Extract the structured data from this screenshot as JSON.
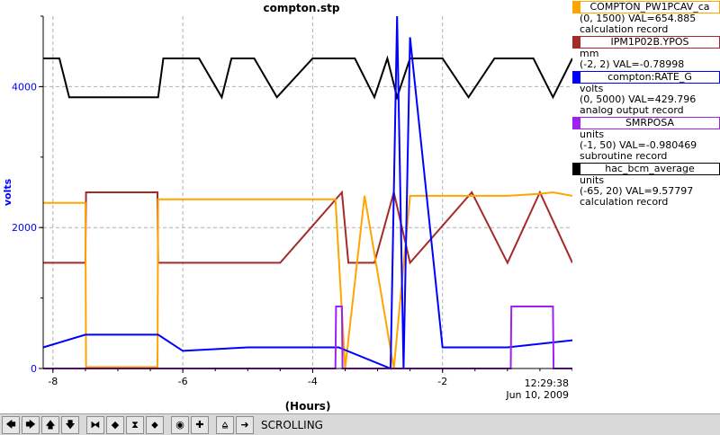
{
  "chart_data": {
    "type": "line",
    "title": "compton.stp",
    "xlabel": "(Hours)",
    "ylabel": "volts",
    "xlim": [
      -8.15,
      0.0
    ],
    "ylim": [
      0,
      5000
    ],
    "xticks": [
      "-8",
      "-6",
      "-4",
      "-2"
    ],
    "xtick_values": [
      -8,
      -6,
      -4,
      -2
    ],
    "yticks": [
      "0",
      "2000",
      "4000"
    ],
    "ytick_values": [
      0,
      2000,
      4000
    ],
    "time_label": "12:29:38",
    "date_label": "Jun 10, 2009",
    "grid": true,
    "legend_position": "right",
    "series": [
      {
        "name": "hac_bcm_average",
        "color": "#000000",
        "range": [
          -65,
          20
        ],
        "x": [
          -8.15,
          -7.9,
          -7.75,
          -7.5,
          -6.38,
          -6.3,
          -6.0,
          -5.75,
          -5.4,
          -5.25,
          -4.9,
          -4.55,
          -4.0,
          -3.75,
          -3.35,
          -3.05,
          -2.85,
          -2.7,
          -2.5,
          -2.0,
          -1.6,
          -1.2,
          -0.6,
          -0.3,
          0.0
        ],
        "values": [
          4400,
          4400,
          3850,
          3850,
          3850,
          4400,
          4400,
          4400,
          3850,
          4400,
          4400,
          3850,
          4400,
          4400,
          4400,
          3850,
          4400,
          3850,
          4400,
          4400,
          3850,
          4400,
          4400,
          3850,
          4400
        ]
      },
      {
        "name": "IPM1P02B.YPOS",
        "color": "#a52a2a",
        "range": [
          -2,
          2
        ],
        "x": [
          -8.15,
          -7.5,
          -7.49,
          -6.39,
          -6.38,
          -4.5,
          -3.55,
          -3.45,
          -3.05,
          -2.75,
          -2.5,
          -1.55,
          -1.0,
          -0.5,
          0.0
        ],
        "values": [
          1500,
          1500,
          2500,
          2500,
          1500,
          1500,
          2500,
          1500,
          1500,
          2500,
          1500,
          2500,
          1500,
          2500,
          1500
        ]
      },
      {
        "name": "COMPTON_PW1PCAV_ca",
        "color": "#ffa500",
        "range": [
          0,
          1500
        ],
        "x": [
          -8.15,
          -7.5,
          -7.49,
          -6.39,
          -6.38,
          -4.2,
          -3.65,
          -3.5,
          -3.2,
          -2.75,
          -2.5,
          -1.6,
          -1.0,
          -0.5,
          -0.3,
          0.0
        ],
        "values": [
          2350,
          2350,
          20,
          20,
          2400,
          2400,
          2400,
          0,
          2450,
          0,
          2450,
          2450,
          2450,
          2480,
          2500,
          2450
        ]
      },
      {
        "name": "compton:RATE_G",
        "color": "#0000ff",
        "range": [
          0,
          5000
        ],
        "x": [
          -8.15,
          -7.5,
          -6.38,
          -6.0,
          -5.0,
          -4.0,
          -3.6,
          -2.8,
          -2.7,
          -2.6,
          -2.5,
          -2.0,
          -1.0,
          0.0
        ],
        "values": [
          300,
          480,
          480,
          250,
          300,
          300,
          300,
          0,
          5000,
          0,
          4700,
          300,
          300,
          400
        ]
      },
      {
        "name": "SMRPOSA",
        "color": "#a020f0",
        "range": [
          -1,
          50
        ],
        "x": [
          -8.15,
          -3.65,
          -3.64,
          -3.55,
          -3.54,
          -0.95,
          -0.94,
          -0.3,
          -0.29,
          0.0
        ],
        "values": [
          0,
          0,
          880,
          880,
          0,
          0,
          880,
          880,
          0,
          0
        ]
      }
    ]
  },
  "legend": [
    {
      "name": "COMPTON_PW1PCAV_ca",
      "color": "#ffa500",
      "lines": [
        "(0, 1500) VAL=654.885",
        "calculation record"
      ]
    },
    {
      "name": "IPM1P02B.YPOS",
      "color": "#a52a2a",
      "lines": [
        "mm",
        "(-2, 2) VAL=-0.78998"
      ]
    },
    {
      "name": "compton:RATE_G",
      "color": "#0000ff",
      "lines": [
        "volts",
        "(0, 5000) VAL=429.796",
        "analog output record"
      ]
    },
    {
      "name": "SMRPOSA",
      "color": "#a020f0",
      "lines": [
        "units",
        "(-1, 50) VAL=-0.980469",
        "subroutine record"
      ]
    },
    {
      "name": "hac_bcm_average",
      "color": "#000000",
      "lines": [
        "units",
        "(-65, 20) VAL=9.57797",
        "calculation record"
      ]
    }
  ],
  "toolbar": {
    "buttons": [
      {
        "name": "pan-left-icon",
        "glyph": "🡄"
      },
      {
        "name": "pan-right-icon",
        "glyph": "🡆"
      },
      {
        "name": "pan-up-icon",
        "glyph": "🡅"
      },
      {
        "name": "pan-down-icon",
        "glyph": "🡇"
      },
      {
        "name": "zoom-in-x-icon",
        "glyph": "⧓"
      },
      {
        "name": "zoom-out-x-icon",
        "glyph": "◆"
      },
      {
        "name": "zoom-in-y-icon",
        "glyph": "⧗"
      },
      {
        "name": "zoom-out-y-icon",
        "glyph": "⬥"
      },
      {
        "name": "autoscale-icon",
        "glyph": "◉"
      },
      {
        "name": "reset-icon",
        "glyph": "✚"
      },
      {
        "name": "stagger-icon",
        "glyph": "⩠"
      },
      {
        "name": "scroll-icon",
        "glyph": "➜"
      }
    ],
    "status": "SCROLLING"
  }
}
